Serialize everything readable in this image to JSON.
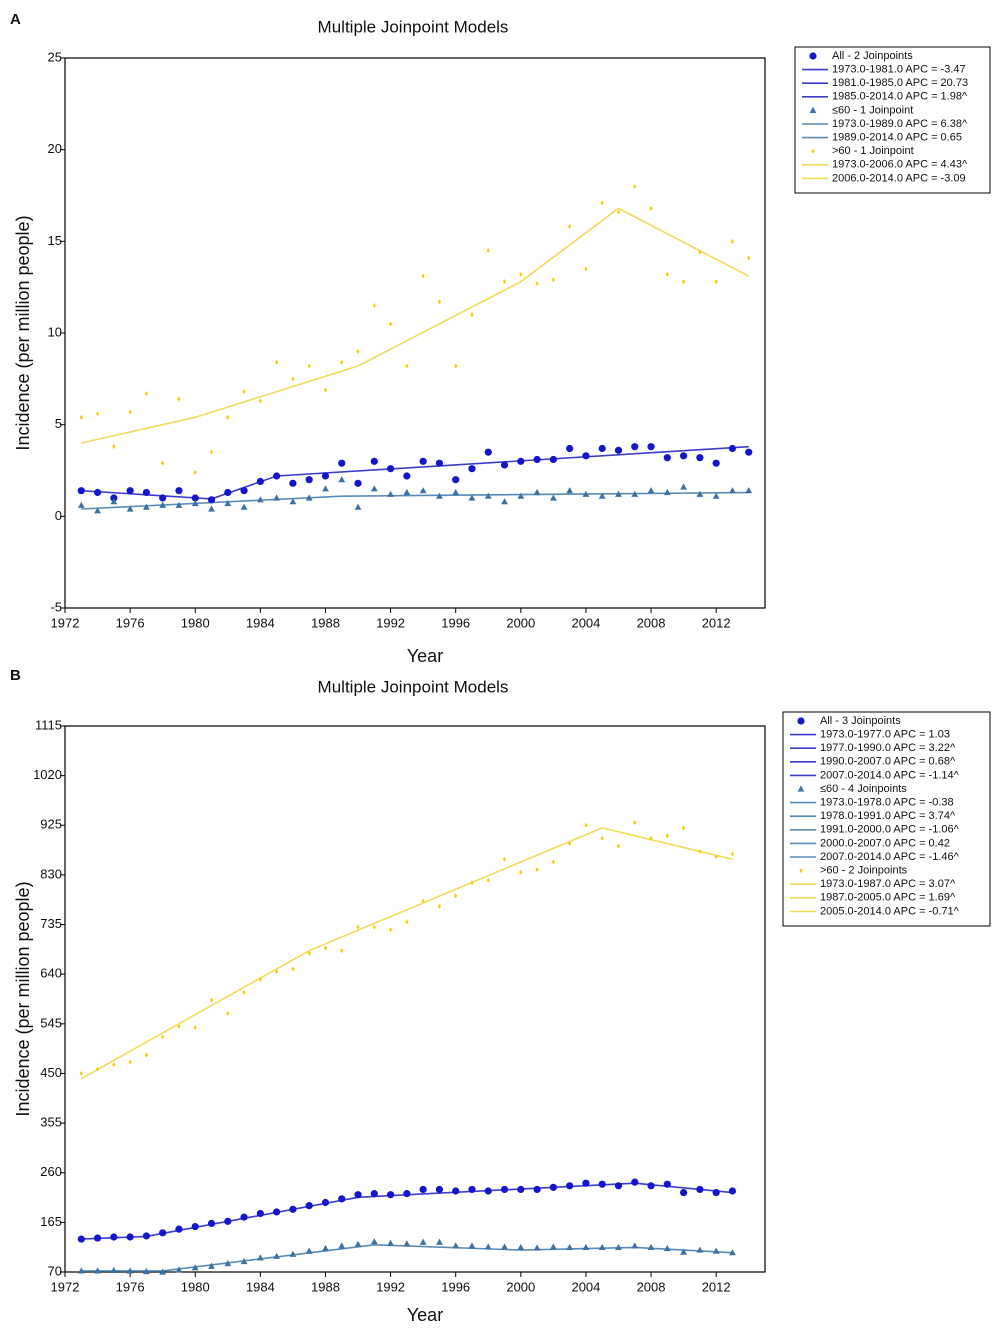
{
  "chart_data": [
    {
      "type": "line",
      "panel": "A",
      "title": "Multiple Joinpoint Models",
      "xlabel": "Year",
      "ylabel": "Incidence (per million people)",
      "xlim": [
        1972,
        2015
      ],
      "ylim": [
        -5,
        25
      ],
      "xticks": [
        1972,
        1976,
        1980,
        1984,
        1988,
        1992,
        1996,
        2000,
        2004,
        2008,
        2012
      ],
      "yticks": [
        -5,
        0,
        5,
        10,
        15,
        20,
        25
      ],
      "x": [
        1973,
        1974,
        1975,
        1976,
        1977,
        1978,
        1979,
        1980,
        1981,
        1982,
        1983,
        1984,
        1985,
        1986,
        1987,
        1988,
        1989,
        1990,
        1991,
        1992,
        1993,
        1994,
        1995,
        1996,
        1997,
        1998,
        1999,
        2000,
        2001,
        2002,
        2003,
        2004,
        2005,
        2006,
        2007,
        2008,
        2009,
        2010,
        2011,
        2012,
        2013,
        2014
      ],
      "series": [
        {
          "name": "All - 2 Joinpoints",
          "color": "#1414d4",
          "marker": "circle",
          "values": [
            1.4,
            1.3,
            1.0,
            1.4,
            1.3,
            1.0,
            1.4,
            1.0,
            0.9,
            1.3,
            1.4,
            1.9,
            2.2,
            1.8,
            2.0,
            2.2,
            2.9,
            1.8,
            3.0,
            2.6,
            2.2,
            3.0,
            2.9,
            2.0,
            2.6,
            3.5,
            2.8,
            3.0,
            3.1,
            3.1,
            3.7,
            3.3,
            3.7,
            3.6,
            3.8,
            3.8,
            3.2,
            3.3,
            3.2,
            2.9,
            3.7,
            3.5
          ]
        },
        {
          "name": "≤60 - 1 Joinpoint",
          "color": "#3f72a4",
          "marker": "triangle",
          "values": [
            0.6,
            0.3,
            0.8,
            0.4,
            0.5,
            0.6,
            0.6,
            0.7,
            0.4,
            0.7,
            0.5,
            0.9,
            1.0,
            0.8,
            1.0,
            1.5,
            2.0,
            0.5,
            1.5,
            1.2,
            1.3,
            1.4,
            1.1,
            1.3,
            1.0,
            1.1,
            0.8,
            1.1,
            1.3,
            1.0,
            1.4,
            1.2,
            1.1,
            1.2,
            1.2,
            1.4,
            1.3,
            1.6,
            1.2,
            1.1,
            1.4,
            1.4
          ]
        },
        {
          "name": ">60 - 1 Joinpoint",
          "color": "#f2d000",
          "marker": "star",
          "values": [
            5.4,
            5.6,
            3.8,
            5.7,
            6.7,
            2.9,
            6.4,
            2.4,
            3.5,
            5.4,
            6.8,
            6.3,
            8.4,
            7.5,
            8.2,
            6.9,
            8.4,
            9.0,
            11.5,
            10.5,
            8.2,
            13.1,
            11.7,
            8.2,
            11.0,
            14.5,
            12.8,
            13.2,
            12.7,
            12.9,
            15.8,
            13.5,
            17.1,
            16.6,
            18.0,
            16.8,
            13.2,
            12.8,
            14.4,
            12.8,
            15.0,
            14.1
          ]
        }
      ],
      "fits": [
        {
          "color": "#3d3dcc",
          "x": [
            1973,
            1981,
            1985,
            2014
          ],
          "values": [
            1.4,
            0.95,
            2.2,
            3.8
          ],
          "segments": [
            "1973.0-1981.0 APC = -3.47",
            "1981.0-1985.0 APC = 20.73",
            "1985.0-2014.0 APC = 1.98^"
          ]
        },
        {
          "color": "#5a8ab6",
          "x": [
            1973,
            1989,
            2014
          ],
          "values": [
            0.4,
            1.1,
            1.3
          ],
          "segments": [
            "1973.0-1989.0 APC = 6.38^",
            "1989.0-2014.0 APC = 0.65"
          ]
        },
        {
          "color": "#efdc5a",
          "x": [
            1973,
            1980,
            1990,
            2000,
            2006,
            2014
          ],
          "values": [
            4.0,
            5.4,
            8.2,
            12.8,
            16.8,
            13.1
          ],
          "segments": [
            "1973.0-2006.0 APC = 4.43^",
            "2006.0-2014.0 APC = -3.09"
          ]
        }
      ]
    },
    {
      "type": "line",
      "panel": "B",
      "title": "Multiple Joinpoint Models",
      "xlabel": "Year",
      "ylabel": "Incidence (per million people)",
      "xlim": [
        1972,
        2015
      ],
      "ylim": [
        70,
        1115
      ],
      "xticks": [
        1972,
        1976,
        1980,
        1984,
        1988,
        1992,
        1996,
        2000,
        2004,
        2008,
        2012
      ],
      "yticks": [
        70,
        165,
        260,
        355,
        450,
        545,
        640,
        735,
        830,
        925,
        1020,
        1115
      ],
      "x": [
        1973,
        1974,
        1975,
        1976,
        1977,
        1978,
        1979,
        1980,
        1981,
        1982,
        1983,
        1984,
        1985,
        1986,
        1987,
        1988,
        1989,
        1990,
        1991,
        1992,
        1993,
        1994,
        1995,
        1996,
        1997,
        1998,
        1999,
        2000,
        2001,
        2002,
        2003,
        2004,
        2005,
        2006,
        2007,
        2008,
        2009,
        2010,
        2011,
        2012,
        2013
      ],
      "series": [
        {
          "name": "All - 3 Joinpoints",
          "color": "#1414d4",
          "marker": "circle",
          "values": [
            133,
            135,
            137,
            137,
            139,
            145,
            152,
            157,
            163,
            167,
            175,
            182,
            185,
            190,
            197,
            203,
            210,
            218,
            220,
            218,
            220,
            228,
            228,
            225,
            228,
            225,
            228,
            228,
            228,
            232,
            235,
            240,
            238,
            235,
            242,
            235,
            238,
            222,
            228,
            222,
            225
          ]
        },
        {
          "name": "≤60 - 4 Joinpoints",
          "color": "#3f72a4",
          "marker": "triangle",
          "values": [
            72,
            72,
            73,
            72,
            71,
            70,
            74,
            78,
            81,
            86,
            90,
            97,
            100,
            104,
            110,
            115,
            120,
            123,
            128,
            125,
            124,
            127,
            127,
            120,
            120,
            118,
            118,
            117,
            116,
            118,
            117,
            117,
            117,
            117,
            120,
            117,
            115,
            108,
            112,
            110,
            107
          ]
        },
        {
          "name": ">60 - 2 Joinpoints",
          "color": "#f2d000",
          "marker": "star",
          "values": [
            450,
            458,
            467,
            472,
            485,
            520,
            540,
            538,
            590,
            565,
            605,
            630,
            645,
            650,
            680,
            690,
            685,
            730,
            730,
            725,
            740,
            780,
            770,
            790,
            815,
            820,
            860,
            835,
            840,
            855,
            890,
            925,
            900,
            885,
            930,
            900,
            905,
            920,
            875,
            865,
            870
          ]
        }
      ],
      "fits": [
        {
          "color": "#3d3dcc",
          "x": [
            1973,
            1977,
            1990,
            2007,
            2013
          ],
          "values": [
            133,
            138,
            213,
            240,
            222
          ],
          "segments": [
            "1973.0-1977.0 APC = 1.03",
            "1977.0-1990.0 APC = 3.22^",
            "1990.0-2007.0 APC = 0.68^",
            "2007.0-2014.0 APC = -1.14^"
          ]
        },
        {
          "color": "#5a8ab6",
          "x": [
            1973,
            1978,
            1991,
            2000,
            2007,
            2013
          ],
          "values": [
            72,
            72,
            122,
            112,
            117,
            107
          ],
          "segments": [
            "1973.0-1978.0 APC = -0.38",
            "1978.0-1991.0 APC = 3.74^",
            "1991.0-2000.0 APC = -1.06^",
            "2000.0-2007.0 APC = 0.42",
            "2007.0-2014.0 APC = -1.46^"
          ]
        },
        {
          "color": "#efdc5a",
          "x": [
            1973,
            1987,
            2005,
            2013
          ],
          "values": [
            440,
            685,
            920,
            860
          ],
          "segments": [
            "1973.0-1987.0 APC = 3.07^",
            "1987.0-2005.0 APC = 1.69^",
            "2005.0-2014.0 APC = -0.71^"
          ]
        }
      ]
    }
  ]
}
